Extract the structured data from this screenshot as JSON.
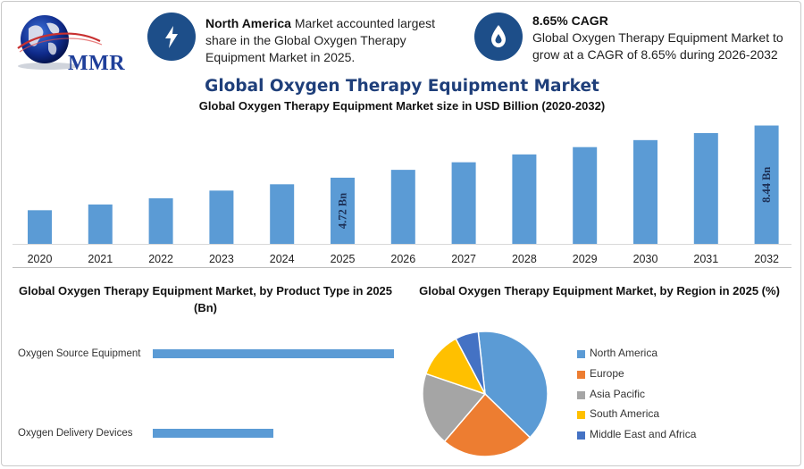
{
  "header": {
    "logo_text": "MMR",
    "info1": {
      "bold": "North America",
      "text": " Market accounted largest share in the Global Oxygen Therapy Equipment Market in 2025."
    },
    "info2": {
      "bold": "8.65% CAGR",
      "text": "Global Oxygen Therapy Equipment Market to grow at a CAGR of 8.65% during 2026-2032"
    }
  },
  "title": "Global Oxygen Therapy Equipment Market",
  "colors": {
    "bar": "#5b9bd5",
    "title": "#1f3f7a",
    "icon_bg": "#1d4e89"
  },
  "chart_data": [
    {
      "type": "bar",
      "title": "Global Oxygen Therapy Equipment Market size in USD Billion (2020-2032)",
      "categories": [
        "2020",
        "2021",
        "2022",
        "2023",
        "2024",
        "2025",
        "2026",
        "2027",
        "2028",
        "2029",
        "2030",
        "2031",
        "2032"
      ],
      "values": [
        2.4,
        2.81,
        3.25,
        3.8,
        4.25,
        4.72,
        5.28,
        5.82,
        6.38,
        6.9,
        7.4,
        7.9,
        8.44
      ],
      "data_labels": {
        "5": "4.72 Bn",
        "12": "8.44 Bn"
      },
      "ylim": [
        0,
        8.6
      ],
      "grid": false
    },
    {
      "type": "bar",
      "orientation": "horizontal",
      "title": "Global Oxygen Therapy Equipment Market, by Product Type in 2025 (Bn)",
      "categories": [
        "Oxygen Source Equipment",
        "Oxygen Delivery Devices"
      ],
      "values": [
        3.0,
        1.5
      ],
      "xlim": [
        0,
        3.0
      ]
    },
    {
      "type": "pie",
      "title": "Global Oxygen Therapy Equipment Market, by Region in 2025 (%)",
      "labels": [
        "North America",
        "Europe",
        "Asia Pacific",
        "South America",
        "Middle East and Africa"
      ],
      "values": [
        39,
        24,
        19,
        12,
        6
      ],
      "colors": [
        "#5b9bd5",
        "#ed7d31",
        "#a5a5a5",
        "#ffc000",
        "#4472c4"
      ],
      "legend": "right"
    }
  ]
}
